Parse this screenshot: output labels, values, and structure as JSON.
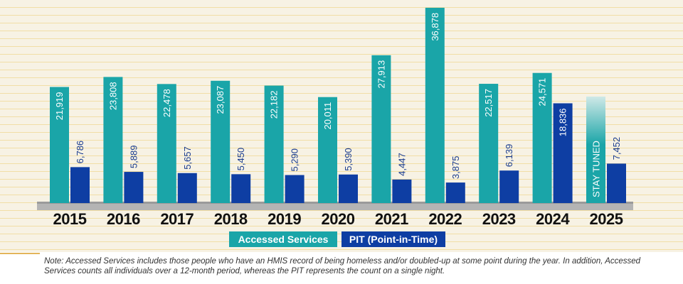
{
  "chart_data": {
    "type": "bar",
    "categories": [
      "2015",
      "2016",
      "2017",
      "2018",
      "2019",
      "2020",
      "2021",
      "2022",
      "2023",
      "2024",
      "2025"
    ],
    "series": [
      {
        "name": "Accessed Services",
        "values": [
          21919,
          23808,
          22478,
          23087,
          22182,
          20011,
          27913,
          36878,
          22517,
          24571,
          null
        ],
        "labels": [
          "21,919",
          "23,808",
          "22,478",
          "23,087",
          "22,182",
          "20,011",
          "27,913",
          "36,878",
          "22,517",
          "24,571",
          ""
        ]
      },
      {
        "name": "PIT (Point-in-Time)",
        "values": [
          6786,
          5889,
          5657,
          5450,
          5290,
          5390,
          4447,
          3875,
          6139,
          18836,
          7452
        ],
        "labels": [
          "6,786",
          "5,889",
          "5,657",
          "5,450",
          "5,290",
          "5,390",
          "4,447",
          "3,875",
          "6,139",
          "18,836",
          "7,452"
        ]
      }
    ],
    "placeholder_2025": "STAY TUNED",
    "legend": [
      "Accessed Services",
      "PIT (Point-in-Time)"
    ],
    "legend_position": "bottom-center",
    "ylim": [
      0,
      37000
    ],
    "colors": {
      "accessed": "#1aa5a8",
      "pit": "#0e3ea3",
      "placeholder_top": "#cfe9e7",
      "placeholder_bottom": "#1aa5a8",
      "baseline": "#b4b4b4"
    }
  },
  "note": "Note: Accessed Services includes those people who have an HMIS record of being homeless and/or doubled-up at some point during the year. In addition, Accessed Services counts all individuals over a 12-month period, whereas the PIT represents the count on a single night."
}
